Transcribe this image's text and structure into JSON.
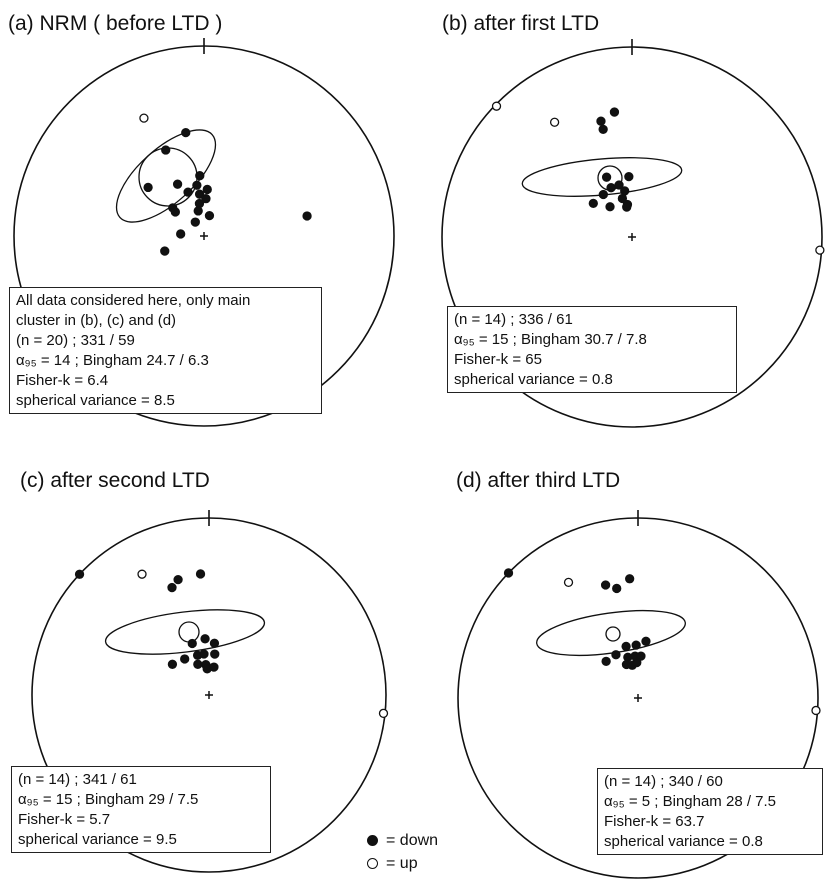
{
  "panels": [
    {
      "id": "a",
      "title": "(a)  NRM ( before LTD )",
      "info": [
        "All data considered here, only main",
        "cluster in (b), (c) and (d)",
        "(n = 20) ; 331 / 59",
        "α₉₅ = 14 ;  Bingham 24.7 / 6.3",
        "Fisher-k = 6.4",
        "spherical variance = 8.5"
      ],
      "points": [
        {
          "dec": 333,
          "inc": 31,
          "pol": "up"
        },
        {
          "dec": 350,
          "inc": 44,
          "pol": "down"
        },
        {
          "dec": 336,
          "inc": 49,
          "pol": "down"
        },
        {
          "dec": 311,
          "inc": 58,
          "pol": "down"
        },
        {
          "dec": 310,
          "inc": 74,
          "pol": "down"
        },
        {
          "dec": 333,
          "inc": 65,
          "pol": "down"
        },
        {
          "dec": 340,
          "inc": 70,
          "pol": "down"
        },
        {
          "dec": 352,
          "inc": 68,
          "pol": "down"
        },
        {
          "dec": 354,
          "inc": 72,
          "pol": "down"
        },
        {
          "dec": 4,
          "inc": 70,
          "pol": "down"
        },
        {
          "dec": 352,
          "inc": 76,
          "pol": "down"
        },
        {
          "dec": 347,
          "inc": 79,
          "pol": "down"
        },
        {
          "dec": 328,
          "inc": 83,
          "pol": "down"
        },
        {
          "dec": 15,
          "inc": 81,
          "pol": "down"
        },
        {
          "dec": 275,
          "inc": 80,
          "pol": "down"
        },
        {
          "dec": 249,
          "inc": 72,
          "pol": "down"
        },
        {
          "dec": 79,
          "inc": 44,
          "pol": "down"
        },
        {
          "dec": 312,
          "inc": 72,
          "pol": "down"
        },
        {
          "dec": 356,
          "inc": 64,
          "pol": "down"
        },
        {
          "dec": 3,
          "inc": 74,
          "pol": "down"
        }
      ]
    },
    {
      "id": "b",
      "title": "(b)  after first LTD",
      "info": [
        "(n = 14) ; 336 / 61",
        "α₉₅ = 15 ;  Bingham 30.7 / 7.8",
        "Fisher-k = 65",
        "spherical variance = 0.8"
      ],
      "points": [
        {
          "dec": 352,
          "inc": 34,
          "pol": "down"
        },
        {
          "dec": 345,
          "inc": 37,
          "pol": "down"
        },
        {
          "dec": 345,
          "inc": 41,
          "pol": "down"
        },
        {
          "dec": 326,
          "inc": 28,
          "pol": "up"
        },
        {
          "dec": 314,
          "inc": 1,
          "pol": "up"
        },
        {
          "dec": 94,
          "inc": 1,
          "pol": "up"
        },
        {
          "dec": 311,
          "inc": 68,
          "pol": "down"
        },
        {
          "dec": 326,
          "inc": 68,
          "pol": "down"
        },
        {
          "dec": 337,
          "inc": 67,
          "pol": "down"
        },
        {
          "dec": 346,
          "inc": 67,
          "pol": "down"
        },
        {
          "dec": 357,
          "inc": 64,
          "pol": "down"
        },
        {
          "dec": 337,
          "inc": 62,
          "pol": "down"
        },
        {
          "dec": 351,
          "inc": 70,
          "pol": "down"
        },
        {
          "dec": 324,
          "inc": 74,
          "pol": "down"
        },
        {
          "dec": 346,
          "inc": 73,
          "pol": "down"
        },
        {
          "dec": 352,
          "inc": 76,
          "pol": "down"
        },
        {
          "dec": 350,
          "inc": 77,
          "pol": "down"
        }
      ]
    },
    {
      "id": "c",
      "title": "(c) after second LTD",
      "info": [
        "(n = 14) ; 341 / 61",
        "α₉₅ = 15 ; Bingham 29 / 7.5",
        "Fisher-k = 5.7",
        "spherical variance = 9.5"
      ],
      "points": [
        {
          "dec": 356,
          "inc": 32,
          "pol": "down"
        },
        {
          "dec": 345,
          "inc": 33,
          "pol": "down"
        },
        {
          "dec": 341,
          "inc": 36,
          "pol": "down"
        },
        {
          "dec": 331,
          "inc": 23,
          "pol": "up"
        },
        {
          "dec": 313,
          "inc": 0,
          "pol": "down"
        },
        {
          "dec": 96,
          "inc": 1,
          "pol": "up"
        },
        {
          "dec": 310,
          "inc": 68,
          "pol": "down"
        },
        {
          "dec": 326,
          "inc": 70,
          "pol": "down"
        },
        {
          "dec": 342,
          "inc": 65,
          "pol": "down"
        },
        {
          "dec": 356,
          "inc": 64,
          "pol": "down"
        },
        {
          "dec": 6,
          "inc": 66,
          "pol": "down"
        },
        {
          "dec": 344,
          "inc": 71,
          "pol": "down"
        },
        {
          "dec": 353,
          "inc": 71,
          "pol": "down"
        },
        {
          "dec": 8,
          "inc": 71,
          "pol": "down"
        },
        {
          "dec": 340,
          "inc": 75,
          "pol": "down"
        },
        {
          "dec": 354,
          "inc": 76,
          "pol": "down"
        },
        {
          "dec": 356,
          "inc": 78,
          "pol": "down"
        },
        {
          "dec": 10,
          "inc": 77,
          "pol": "down"
        }
      ]
    },
    {
      "id": "d",
      "title": "(d)  after third LTD",
      "info": [
        "(n = 14) ; 340 / 60",
        "α₉₅ = 5 ;  Bingham 28 / 7.5",
        "Fisher-k = 63.7",
        "spherical variance = 0.8"
      ],
      "points": [
        {
          "dec": 356,
          "inc": 34,
          "pol": "down"
        },
        {
          "dec": 344,
          "inc": 35,
          "pol": "down"
        },
        {
          "dec": 349,
          "inc": 38,
          "pol": "down"
        },
        {
          "dec": 329,
          "inc": 26,
          "pol": "up"
        },
        {
          "dec": 314,
          "inc": 0,
          "pol": "down"
        },
        {
          "dec": 94,
          "inc": 1,
          "pol": "up"
        },
        {
          "dec": 319,
          "inc": 68,
          "pol": "down"
        },
        {
          "dec": 333,
          "inc": 68,
          "pol": "down"
        },
        {
          "dec": 347,
          "inc": 66,
          "pol": "down"
        },
        {
          "dec": 358,
          "inc": 66,
          "pol": "down"
        },
        {
          "dec": 8,
          "inc": 64,
          "pol": "down"
        },
        {
          "dec": 346,
          "inc": 71,
          "pol": "down"
        },
        {
          "dec": 356,
          "inc": 71,
          "pol": "down"
        },
        {
          "dec": 4,
          "inc": 71,
          "pol": "down"
        },
        {
          "dec": 341,
          "inc": 74,
          "pol": "down"
        },
        {
          "dec": 350,
          "inc": 75,
          "pol": "down"
        },
        {
          "dec": 358,
          "inc": 74,
          "pol": "down"
        }
      ]
    }
  ],
  "legend": {
    "down_label": "= down",
    "up_label": "= up"
  }
}
